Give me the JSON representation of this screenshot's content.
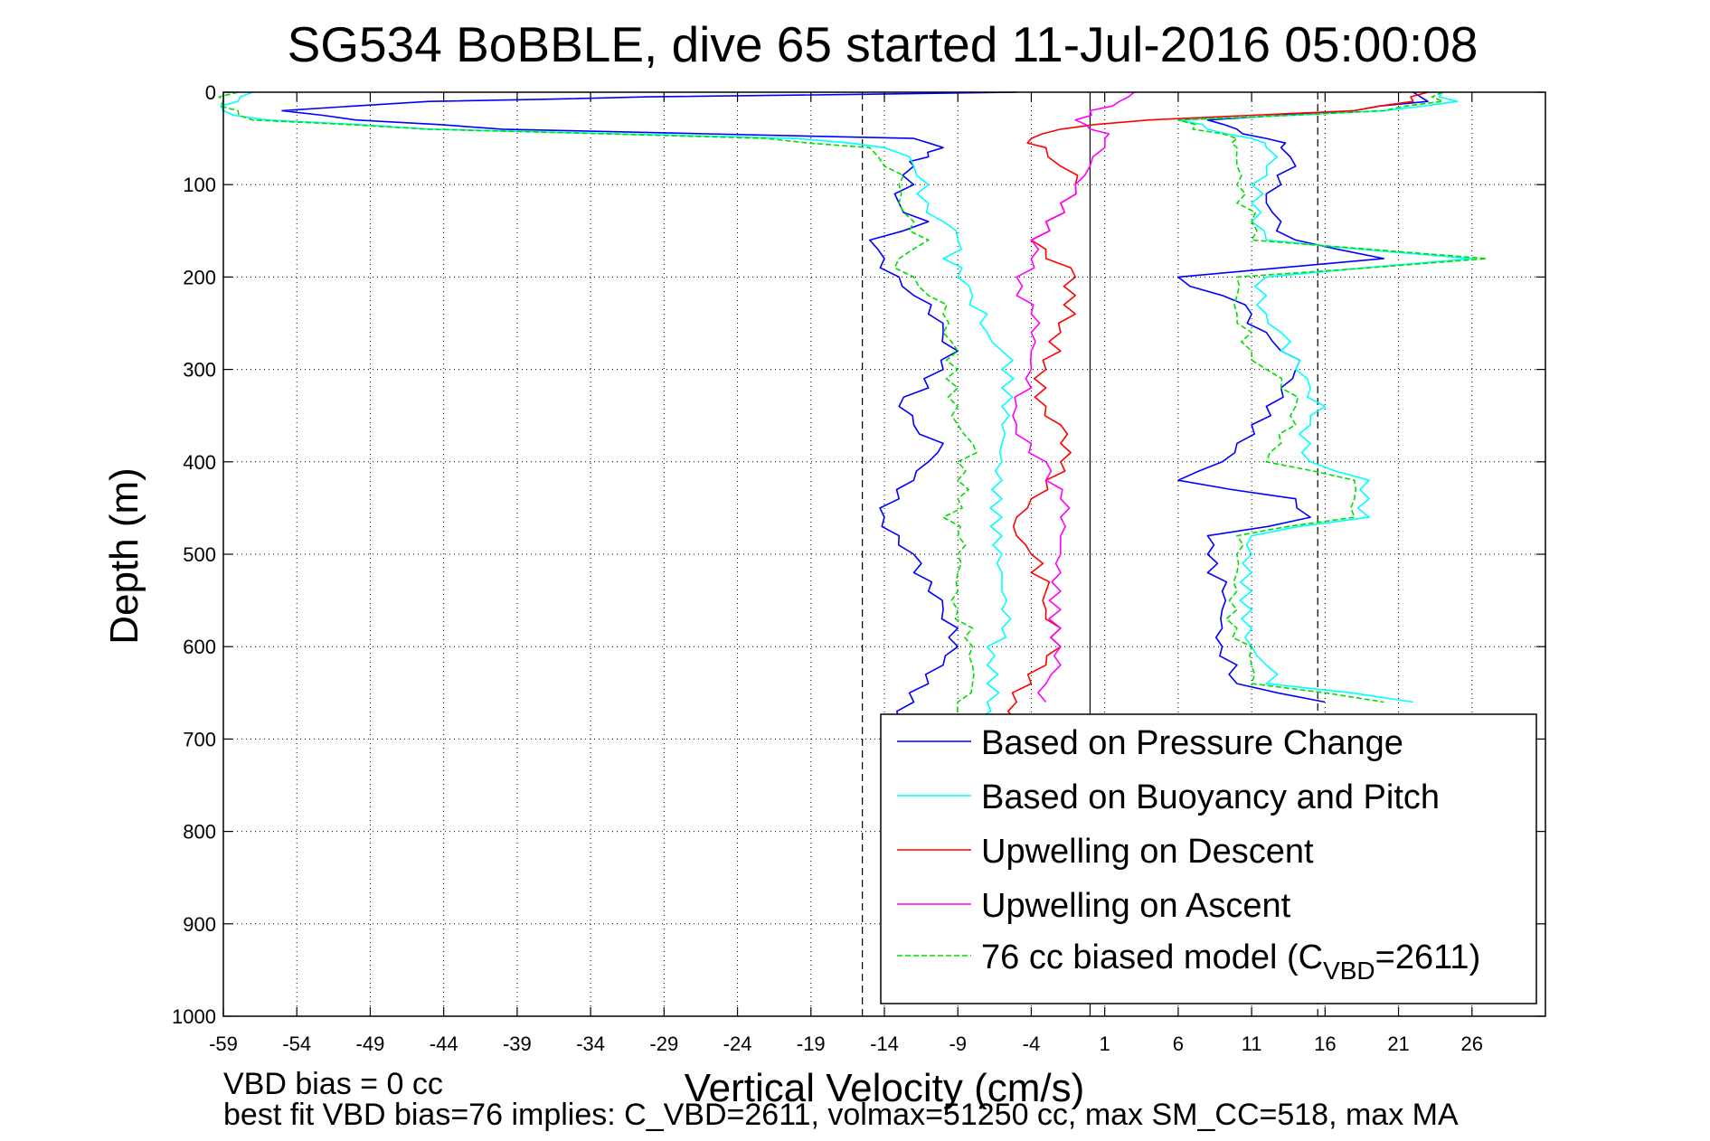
{
  "chart_data": {
    "type": "line",
    "title": "SG534 BoBBLE, dive 65 started 11-Jul-2016 05:00:08",
    "xlabel": "Vertical Velocity (cm/s)",
    "ylabel": "Depth (m)",
    "xlim": [
      -59,
      31
    ],
    "ylim": [
      0,
      1000
    ],
    "y_reversed": true,
    "grid": true,
    "legend_position": "bottom-right",
    "x_ticks": [
      -59,
      -54,
      -49,
      -44,
      -39,
      -34,
      -29,
      -24,
      -19,
      -14,
      -9,
      -4,
      1,
      6,
      11,
      16,
      21,
      26
    ],
    "y_ticks": [
      0,
      100,
      200,
      300,
      400,
      500,
      600,
      700,
      800,
      900,
      1000
    ],
    "reference_lines": [
      {
        "x": -15.5,
        "style": "dashed"
      },
      {
        "x": 0,
        "style": "solid"
      },
      {
        "x": 15.5,
        "style": "dashed"
      }
    ],
    "series": [
      {
        "name": "Based on Pressure Change",
        "color": "#0000ff",
        "style": "solid",
        "descent": {
          "depth": [
            0,
            5,
            10,
            20,
            30,
            40,
            50,
            60,
            70,
            80,
            100,
            120,
            140,
            160,
            180,
            200,
            220,
            240,
            260,
            280,
            300,
            320,
            340,
            360,
            380,
            400,
            420,
            440,
            460,
            480,
            500,
            520,
            540,
            560,
            580,
            600,
            620,
            640,
            660,
            680
          ],
          "velocity": [
            -5,
            -30,
            -45,
            -55,
            -50,
            -40,
            -12,
            -10,
            -11,
            -12,
            -12,
            -13,
            -11,
            -15,
            -14,
            -13,
            -12,
            -11,
            -10,
            -9,
            -10,
            -11,
            -13,
            -12,
            -10,
            -11,
            -12,
            -13,
            -14,
            -13,
            -12,
            -12,
            -11,
            -10,
            -9,
            -9,
            -10,
            -11,
            -12,
            -13
          ]
        },
        "ascent": {
          "depth": [
            0,
            10,
            20,
            30,
            40,
            50,
            60,
            80,
            100,
            120,
            140,
            160,
            180,
            200,
            220,
            240,
            260,
            280,
            300,
            320,
            340,
            360,
            380,
            400,
            420,
            440,
            460,
            480,
            500,
            520,
            540,
            560,
            580,
            600,
            620,
            640,
            660
          ],
          "velocity": [
            22,
            23,
            18,
            8,
            10,
            12,
            13,
            14,
            13,
            12,
            13,
            14,
            20,
            6,
            9,
            11,
            12,
            13,
            14,
            13,
            12,
            11,
            10,
            9,
            6,
            14,
            15,
            8,
            8,
            8,
            9,
            9,
            9,
            9,
            10,
            10,
            16
          ]
        }
      },
      {
        "name": "Based on Buoyancy and Pitch",
        "color": "#00ffff",
        "style": "solid",
        "descent": {
          "depth": [
            0,
            10,
            20,
            30,
            40,
            50,
            60,
            80,
            100,
            120,
            140,
            160,
            180,
            200,
            220,
            240,
            260,
            280,
            300,
            320,
            340,
            360,
            380,
            400,
            420,
            440,
            460,
            480,
            500,
            520,
            540,
            560,
            580,
            600,
            620,
            640,
            660,
            680
          ],
          "velocity": [
            -57,
            -58,
            -59,
            -56,
            -45,
            -20,
            -14,
            -12,
            -11,
            -11,
            -10,
            -9,
            -10,
            -9,
            -8,
            -7,
            -7,
            -6,
            -6,
            -6,
            -6,
            -6,
            -6,
            -6,
            -6,
            -6,
            -6,
            -6,
            -6,
            -6,
            -6,
            -6,
            -6,
            -7,
            -7,
            -7,
            -7,
            -8
          ]
        },
        "ascent": {
          "depth": [
            0,
            10,
            20,
            30,
            40,
            50,
            60,
            80,
            100,
            120,
            140,
            160,
            180,
            200,
            220,
            240,
            260,
            280,
            300,
            320,
            340,
            360,
            380,
            400,
            420,
            440,
            460,
            480,
            500,
            520,
            540,
            560,
            580,
            600,
            620,
            640,
            660
          ],
          "velocity": [
            24,
            25,
            20,
            6,
            8,
            11,
            12,
            12,
            11,
            11,
            11,
            12,
            26,
            12,
            12,
            12,
            13,
            13,
            14,
            15,
            16,
            15,
            15,
            15,
            19,
            19,
            19,
            11,
            11,
            11,
            11,
            11,
            11,
            11,
            12,
            12,
            22
          ]
        }
      },
      {
        "name": "Upwelling on Descent",
        "color": "#ff0000",
        "style": "solid",
        "descent": {
          "depth": [
            0,
            10,
            20,
            30,
            40,
            50,
            60,
            80,
            100,
            120,
            140,
            160,
            180,
            200,
            220,
            240,
            260,
            280,
            300,
            320,
            340,
            360,
            380,
            400,
            420,
            440,
            460,
            480,
            500,
            520,
            540,
            560,
            580,
            600,
            620,
            640,
            660,
            680
          ],
          "velocity": [
            23,
            22,
            18,
            4,
            -2,
            -4,
            -3,
            -2,
            -1,
            -2,
            -3,
            -4,
            -3,
            -1,
            -1,
            -1,
            -2,
            -2,
            -3,
            -3,
            -3,
            -2,
            -2,
            -2,
            -3,
            -4,
            -5,
            -5,
            -4,
            -4,
            -3,
            -3,
            -2,
            -2,
            -3,
            -4,
            -5,
            -5
          ]
        }
      },
      {
        "name": "Upwelling on Ascent",
        "color": "#ff00ff",
        "style": "solid",
        "ascent": {
          "depth": [
            0,
            10,
            20,
            30,
            40,
            50,
            60,
            80,
            100,
            120,
            140,
            160,
            180,
            200,
            220,
            240,
            260,
            280,
            300,
            320,
            340,
            360,
            380,
            400,
            420,
            440,
            460,
            480,
            500,
            520,
            540,
            560,
            580,
            600,
            620,
            640,
            660
          ],
          "velocity": [
            3,
            2,
            0,
            -1,
            0,
            1,
            1,
            0,
            -1,
            -2,
            -3,
            -4,
            -4,
            -5,
            -5,
            -4,
            -4,
            -4,
            -4,
            -4,
            -5,
            -5,
            -4,
            -3,
            -3,
            -2,
            -2,
            -2,
            -2,
            -2,
            -2,
            -2,
            -2,
            -2,
            -2,
            -3,
            -3
          ]
        }
      },
      {
        "name": "76 cc biased model (C",
        "name_subscript": "VBD",
        "name_suffix": "=2611)",
        "color": "#00dd00",
        "style": "dashed",
        "descent": {
          "depth": [
            0,
            10,
            20,
            30,
            40,
            50,
            60,
            80,
            100,
            120,
            140,
            160,
            180,
            200,
            220,
            240,
            260,
            280,
            300,
            320,
            340,
            360,
            380,
            400,
            420,
            440,
            460,
            480,
            500,
            520,
            540,
            560,
            580,
            600,
            620,
            640,
            660,
            680
          ],
          "velocity": [
            -58,
            -59,
            -58,
            -57,
            -45,
            -22,
            -15,
            -14,
            -13,
            -13,
            -12,
            -11,
            -13,
            -12,
            -11,
            -10,
            -10,
            -9,
            -9,
            -9,
            -9,
            -9,
            -8,
            -9,
            -9,
            -9,
            -10,
            -9,
            -9,
            -9,
            -9,
            -9,
            -8,
            -8,
            -8,
            -8,
            -9,
            -9
          ]
        },
        "ascent": {
          "depth": [
            0,
            10,
            20,
            30,
            40,
            50,
            60,
            80,
            100,
            120,
            140,
            160,
            180,
            200,
            220,
            240,
            260,
            280,
            300,
            320,
            340,
            360,
            380,
            400,
            420,
            440,
            460,
            480,
            500,
            520,
            540,
            560,
            580,
            600,
            620,
            640,
            660
          ],
          "velocity": [
            24,
            24,
            20,
            6,
            7,
            10,
            10,
            10,
            10,
            10,
            11,
            11,
            27,
            10,
            10,
            10,
            11,
            11,
            12,
            13,
            14,
            14,
            13,
            12,
            18,
            18,
            18,
            10,
            10,
            10,
            10,
            10,
            10,
            11,
            11,
            11,
            20
          ]
        }
      }
    ],
    "annotations": {
      "line1": "VBD bias = 0 cc",
      "line2": "best fit VBD bias=76 implies: C_VBD=2611, volmax=51250 cc, max SM_CC=518, max MA"
    }
  }
}
